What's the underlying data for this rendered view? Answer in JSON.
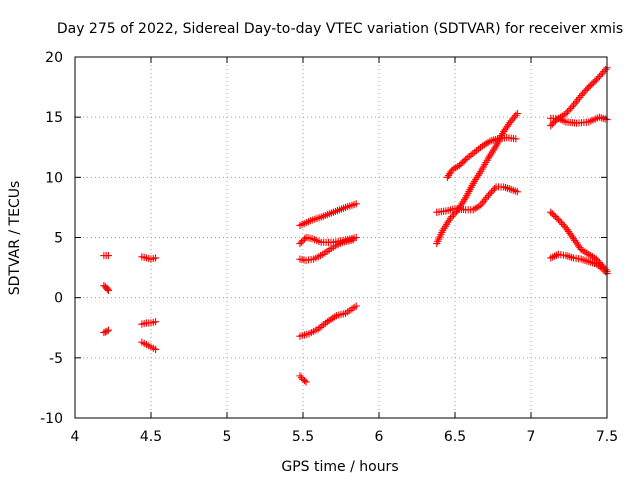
{
  "chart_data": {
    "type": "scatter",
    "title": "Day 275 of 2022, Sidereal Day-to-day VTEC variation (SDTVAR) for receiver xmis",
    "xlabel": "GPS time / hours",
    "ylabel": "SDTVAR / TECUs",
    "xlim": [
      4,
      7.5
    ],
    "ylim": [
      -10,
      20
    ],
    "x_ticks": [
      "4",
      "4.5",
      "5",
      "5.5",
      "6",
      "6.5",
      "7",
      "7.5"
    ],
    "y_ticks": [
      "-10",
      "-5",
      "0",
      "5",
      "10",
      "15",
      "20"
    ],
    "grid": true,
    "legend": "none",
    "marker": "plus",
    "color": "#ff0000",
    "tracks": [
      [
        [
          4.19,
          3.5
        ],
        [
          4.22,
          3.5
        ]
      ],
      [
        [
          4.19,
          1.0
        ],
        [
          4.21,
          0.8
        ],
        [
          4.22,
          0.6
        ]
      ],
      [
        [
          4.19,
          -2.9
        ],
        [
          4.21,
          -2.8
        ],
        [
          4.22,
          -2.7
        ]
      ],
      [
        [
          4.44,
          3.4
        ],
        [
          4.47,
          3.3
        ],
        [
          4.5,
          3.2
        ],
        [
          4.53,
          3.3
        ]
      ],
      [
        [
          4.44,
          -2.2
        ],
        [
          4.47,
          -2.1
        ],
        [
          4.5,
          -2.1
        ],
        [
          4.53,
          -2.0
        ]
      ],
      [
        [
          4.44,
          -3.7
        ],
        [
          4.47,
          -3.9
        ],
        [
          4.5,
          -4.1
        ],
        [
          4.53,
          -4.3
        ]
      ],
      [
        [
          5.48,
          6.0
        ],
        [
          5.55,
          6.4
        ],
        [
          5.62,
          6.7
        ],
        [
          5.7,
          7.1
        ],
        [
          5.78,
          7.5
        ],
        [
          5.85,
          7.8
        ]
      ],
      [
        [
          5.48,
          4.5
        ],
        [
          5.52,
          5.0
        ],
        [
          5.56,
          4.9
        ],
        [
          5.62,
          4.6
        ],
        [
          5.7,
          4.6
        ],
        [
          5.78,
          4.8
        ],
        [
          5.85,
          5.0
        ]
      ],
      [
        [
          5.48,
          3.2
        ],
        [
          5.52,
          3.1
        ],
        [
          5.57,
          3.2
        ],
        [
          5.63,
          3.6
        ],
        [
          5.7,
          4.2
        ],
        [
          5.76,
          4.6
        ],
        [
          5.83,
          4.8
        ]
      ],
      [
        [
          5.48,
          -3.2
        ],
        [
          5.54,
          -3.0
        ],
        [
          5.6,
          -2.6
        ],
        [
          5.66,
          -2.0
        ],
        [
          5.72,
          -1.5
        ],
        [
          5.78,
          -1.3
        ],
        [
          5.85,
          -0.7
        ]
      ],
      [
        [
          5.48,
          -6.5
        ],
        [
          5.5,
          -6.8
        ],
        [
          5.52,
          -7.0
        ]
      ],
      [
        [
          6.38,
          4.5
        ],
        [
          6.42,
          5.6
        ],
        [
          6.47,
          6.6
        ],
        [
          6.52,
          7.3
        ],
        [
          6.57,
          8.3
        ],
        [
          6.62,
          9.5
        ],
        [
          6.67,
          10.5
        ],
        [
          6.72,
          11.6
        ],
        [
          6.77,
          12.6
        ],
        [
          6.82,
          13.8
        ],
        [
          6.87,
          14.7
        ],
        [
          6.91,
          15.3
        ]
      ],
      [
        [
          6.38,
          7.1
        ],
        [
          6.44,
          7.2
        ],
        [
          6.5,
          7.4
        ],
        [
          6.57,
          7.3
        ],
        [
          6.62,
          7.3
        ],
        [
          6.67,
          7.7
        ],
        [
          6.72,
          8.5
        ],
        [
          6.77,
          9.2
        ],
        [
          6.82,
          9.2
        ],
        [
          6.87,
          9.0
        ],
        [
          6.91,
          8.8
        ]
      ],
      [
        [
          6.45,
          10.0
        ],
        [
          6.48,
          10.6
        ],
        [
          6.53,
          11.0
        ],
        [
          6.58,
          11.6
        ],
        [
          6.63,
          12.1
        ],
        [
          6.68,
          12.6
        ],
        [
          6.73,
          13.0
        ],
        [
          6.78,
          13.2
        ],
        [
          6.84,
          13.3
        ],
        [
          6.9,
          13.2
        ]
      ],
      [
        [
          7.13,
          14.3
        ],
        [
          7.17,
          14.8
        ],
        [
          7.23,
          15.3
        ],
        [
          7.28,
          16.0
        ],
        [
          7.33,
          16.8
        ],
        [
          7.38,
          17.5
        ],
        [
          7.43,
          18.1
        ],
        [
          7.48,
          18.8
        ],
        [
          7.5,
          19.1
        ]
      ],
      [
        [
          7.13,
          14.9
        ],
        [
          7.18,
          14.9
        ],
        [
          7.23,
          14.6
        ],
        [
          7.3,
          14.5
        ],
        [
          7.38,
          14.6
        ],
        [
          7.45,
          15.0
        ],
        [
          7.5,
          14.8
        ]
      ],
      [
        [
          7.13,
          7.1
        ],
        [
          7.18,
          6.5
        ],
        [
          7.23,
          5.8
        ],
        [
          7.28,
          4.9
        ],
        [
          7.33,
          4.0
        ],
        [
          7.38,
          3.6
        ],
        [
          7.43,
          3.2
        ],
        [
          7.48,
          2.5
        ],
        [
          7.5,
          2.2
        ]
      ],
      [
        [
          7.13,
          3.3
        ],
        [
          7.18,
          3.6
        ],
        [
          7.23,
          3.5
        ],
        [
          7.28,
          3.3
        ],
        [
          7.33,
          3.2
        ],
        [
          7.38,
          3.0
        ],
        [
          7.43,
          2.8
        ],
        [
          7.48,
          2.3
        ],
        [
          7.5,
          2.0
        ]
      ]
    ]
  }
}
